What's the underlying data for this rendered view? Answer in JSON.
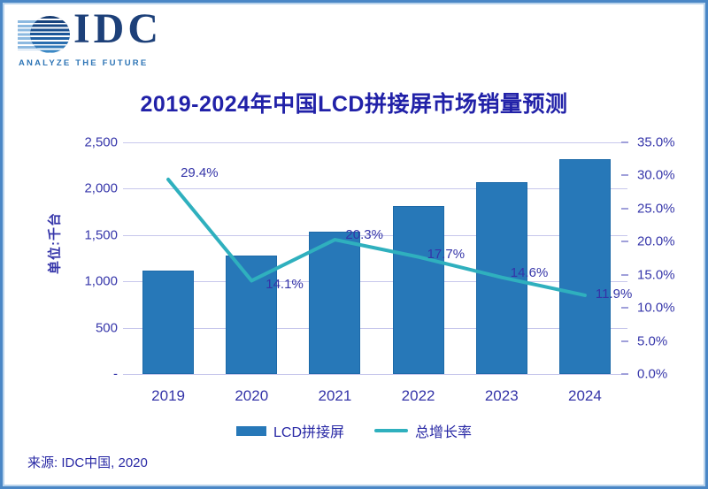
{
  "logo": {
    "name": "IDC",
    "tagline": "ANALYZE THE FUTURE"
  },
  "title": "2019-2024年中国LCD拼接屏市场销量预测",
  "unit_label": "单位:千台",
  "source": "来源: IDC中国, 2020",
  "colors": {
    "bar": "#2778b8",
    "line": "#2fb0be",
    "title_text": "#2121a8",
    "axis_text": "#3636aa",
    "gridline": "#c7c7ec",
    "frame_border": "#4a87c6"
  },
  "chart_data": {
    "type": "bar",
    "title": "2019-2024年中国LCD拼接屏市场销量预测",
    "categories": [
      "2019",
      "2020",
      "2021",
      "2022",
      "2023",
      "2024"
    ],
    "series": [
      {
        "name": "LCD拼接屏",
        "type": "bar",
        "axis": "left",
        "values": [
          1120,
          1278,
          1537,
          1809,
          2073,
          2320
        ]
      },
      {
        "name": "总增长率",
        "type": "line",
        "axis": "right",
        "values": [
          29.4,
          14.1,
          20.3,
          17.7,
          14.6,
          11.9
        ],
        "labels": [
          "29.4%",
          "14.1%",
          "20.3%",
          "17.7%",
          "14.6%",
          "11.9%"
        ]
      }
    ],
    "left_axis": {
      "label": "单位:千台",
      "min": 0,
      "max": 2500,
      "ticks": [
        "2,500",
        "2,000",
        "1,500",
        "1,000",
        "500",
        "-"
      ]
    },
    "right_axis": {
      "min": 0,
      "max": 35,
      "ticks": [
        "35.0%",
        "30.0%",
        "25.0%",
        "20.0%",
        "15.0%",
        "10.0%",
        "5.0%",
        "0.0%"
      ]
    },
    "grid": "horizontal",
    "legend_position": "bottom",
    "legend": [
      {
        "label": "LCD拼接屏",
        "swatch": "bar"
      },
      {
        "label": "总增长率",
        "swatch": "line"
      }
    ]
  }
}
